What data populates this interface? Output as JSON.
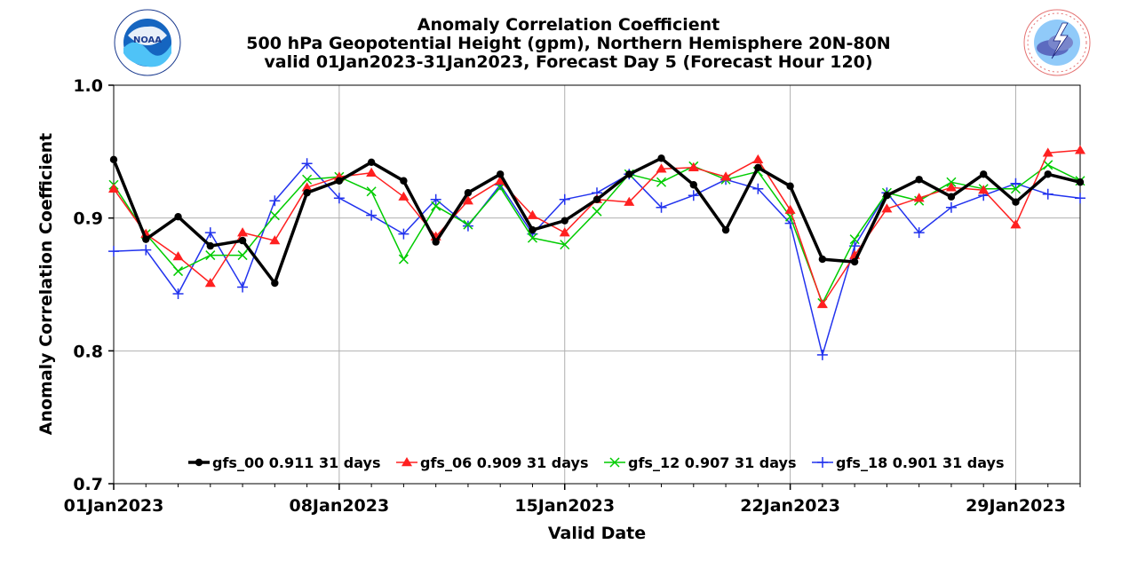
{
  "chart_data": {
    "type": "line",
    "title": "Anomaly Correlation Coefficient",
    "subtitle_lines": [
      "500 hPa Geopotential Height (gpm), Northern Hemisphere 20N-80N",
      "valid 01Jan2023-31Jan2023, Forecast Day 5 (Forecast Hour 120)"
    ],
    "xlabel": "Valid Date",
    "ylabel": "Anomaly Correlation Coefficient",
    "ylim": [
      0.7,
      1.0
    ],
    "yticks": [
      0.7,
      0.8,
      0.9,
      1.0
    ],
    "ytick_labels": [
      "0.7",
      "0.8",
      "0.9",
      "1.0"
    ],
    "xlim_days": [
      1,
      31
    ],
    "xtick_days": [
      1,
      8,
      15,
      22,
      29
    ],
    "xtick_labels": [
      "01Jan2023",
      "08Jan2023",
      "15Jan2023",
      "22Jan2023",
      "29Jan2023"
    ],
    "x": [
      "2023-01-01",
      "2023-01-02",
      "2023-01-03",
      "2023-01-04",
      "2023-01-05",
      "2023-01-06",
      "2023-01-07",
      "2023-01-08",
      "2023-01-09",
      "2023-01-10",
      "2023-01-11",
      "2023-01-12",
      "2023-01-13",
      "2023-01-14",
      "2023-01-15",
      "2023-01-16",
      "2023-01-17",
      "2023-01-18",
      "2023-01-19",
      "2023-01-20",
      "2023-01-21",
      "2023-01-22",
      "2023-01-23",
      "2023-01-24",
      "2023-01-25",
      "2023-01-26",
      "2023-01-27",
      "2023-01-28",
      "2023-01-29",
      "2023-01-30",
      "2023-01-31"
    ],
    "grid": true,
    "legend_position": "bottom-center",
    "series": [
      {
        "name": "gfs_00",
        "legend_label": "gfs_00 0.911 31 days",
        "color": "#000000",
        "marker": "circle",
        "values": [
          0.944,
          0.884,
          0.901,
          0.879,
          0.883,
          0.851,
          0.919,
          0.928,
          0.942,
          0.928,
          0.882,
          0.919,
          0.933,
          0.891,
          0.898,
          0.914,
          0.933,
          0.945,
          0.925,
          0.891,
          0.938,
          0.924,
          0.869,
          0.867,
          0.917,
          0.929,
          0.916,
          0.933,
          0.912,
          0.933,
          0.927
        ]
      },
      {
        "name": "gfs_06",
        "legend_label": "gfs_06 0.909 31 days",
        "color": "#ff2020",
        "marker": "triangle",
        "values": [
          0.922,
          0.888,
          0.871,
          0.851,
          0.889,
          0.883,
          0.923,
          0.931,
          0.934,
          0.916,
          0.886,
          0.913,
          0.928,
          0.902,
          0.889,
          0.914,
          0.912,
          0.937,
          0.938,
          0.931,
          0.944,
          0.906,
          0.835,
          0.872,
          0.907,
          0.915,
          0.923,
          0.921,
          0.895,
          0.949,
          0.951
        ]
      },
      {
        "name": "gfs_12",
        "legend_label": "gfs_12 0.907 31 days",
        "color": "#00cc00",
        "marker": "x",
        "values": [
          0.925,
          0.888,
          0.86,
          0.872,
          0.872,
          0.902,
          0.929,
          0.931,
          0.92,
          0.869,
          0.909,
          0.895,
          0.923,
          0.885,
          0.88,
          0.905,
          0.933,
          0.927,
          0.939,
          0.929,
          0.935,
          0.901,
          0.836,
          0.884,
          0.919,
          0.913,
          0.927,
          0.922,
          0.922,
          0.94,
          0.928
        ]
      },
      {
        "name": "gfs_18",
        "legend_label": "gfs_18 0.901 31 days",
        "color": "#2233ee",
        "marker": "plus",
        "values": [
          0.875,
          0.876,
          0.843,
          0.889,
          0.848,
          0.913,
          0.941,
          0.915,
          0.902,
          0.888,
          0.914,
          0.894,
          0.925,
          0.888,
          0.914,
          0.919,
          0.933,
          0.908,
          0.917,
          0.929,
          0.922,
          0.896,
          0.797,
          0.879,
          0.919,
          0.889,
          0.908,
          0.917,
          0.926,
          0.918,
          0.915
        ]
      }
    ]
  },
  "logos": {
    "left": {
      "icon": "noaa-logo",
      "text": "NOAA",
      "ring_text": "NATIONAL OCEANIC AND ATMOSPHERIC ADMINISTRATION · U.S. DEPARTMENT OF COMMERCE"
    },
    "right": {
      "icon": "national-weather-service-logo",
      "ring_text": "NATIONAL WEATHER SERVICE"
    }
  }
}
